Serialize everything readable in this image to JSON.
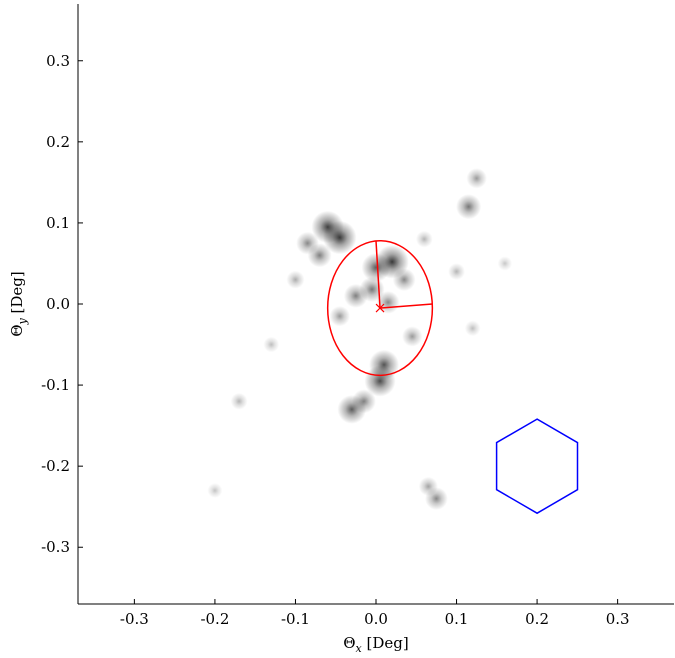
{
  "chart_data": {
    "type": "scatter",
    "title": "",
    "xlabel": "Θx [Deg]",
    "ylabel": "Θy [Deg]",
    "xlim": [
      -0.37,
      0.37
    ],
    "ylim": [
      -0.37,
      0.37
    ],
    "x_ticks": [
      -0.3,
      -0.2,
      -0.1,
      0.0,
      0.1,
      0.2,
      0.3
    ],
    "x_tick_labels": [
      "-0.3",
      "-0.2",
      "-0.1",
      "0.0",
      "0.1",
      "0.2",
      "0.3"
    ],
    "y_ticks": [
      -0.3,
      -0.2,
      -0.1,
      0.0,
      0.1,
      0.2,
      0.3
    ],
    "y_tick_labels": [
      "-0.3",
      "-0.2",
      "-0.1",
      "0.0",
      "0.1",
      "0.2",
      "0.3"
    ],
    "grid": false,
    "fit_ellipse": {
      "center": [
        0.005,
        -0.005
      ],
      "x_radius": 0.065,
      "y_radius": 0.083,
      "major_axis_end": [
        0.0,
        0.078
      ],
      "minor_axis_end": [
        0.07,
        0.0
      ],
      "color": "#ff0000"
    },
    "hexagon": {
      "center": [
        0.2,
        -0.2
      ],
      "radius": 0.058,
      "color": "#0000ff"
    },
    "density_features": [
      {
        "x": -0.06,
        "y": 0.095,
        "intensity": 0.85
      },
      {
        "x": -0.045,
        "y": 0.082,
        "intensity": 0.9
      },
      {
        "x": -0.085,
        "y": 0.075,
        "intensity": 0.45
      },
      {
        "x": -0.07,
        "y": 0.06,
        "intensity": 0.5
      },
      {
        "x": 0.02,
        "y": 0.052,
        "intensity": 0.9
      },
      {
        "x": 0.0,
        "y": 0.045,
        "intensity": 0.7
      },
      {
        "x": 0.035,
        "y": 0.03,
        "intensity": 0.45
      },
      {
        "x": -0.005,
        "y": 0.018,
        "intensity": 0.55
      },
      {
        "x": -0.025,
        "y": 0.01,
        "intensity": 0.5
      },
      {
        "x": 0.015,
        "y": 0.002,
        "intensity": 0.45
      },
      {
        "x": -0.045,
        "y": -0.015,
        "intensity": 0.35
      },
      {
        "x": 0.045,
        "y": -0.04,
        "intensity": 0.35
      },
      {
        "x": 0.01,
        "y": -0.075,
        "intensity": 0.75
      },
      {
        "x": 0.005,
        "y": -0.095,
        "intensity": 0.8
      },
      {
        "x": -0.03,
        "y": -0.13,
        "intensity": 0.7
      },
      {
        "x": -0.015,
        "y": -0.12,
        "intensity": 0.5
      },
      {
        "x": 0.115,
        "y": 0.12,
        "intensity": 0.55
      },
      {
        "x": 0.125,
        "y": 0.155,
        "intensity": 0.35
      },
      {
        "x": 0.075,
        "y": -0.24,
        "intensity": 0.45
      },
      {
        "x": 0.065,
        "y": -0.225,
        "intensity": 0.3
      },
      {
        "x": -0.17,
        "y": -0.12,
        "intensity": 0.2
      },
      {
        "x": -0.13,
        "y": -0.05,
        "intensity": 0.15
      },
      {
        "x": -0.2,
        "y": -0.23,
        "intensity": 0.12
      },
      {
        "x": 0.1,
        "y": 0.04,
        "intensity": 0.2
      },
      {
        "x": 0.12,
        "y": -0.03,
        "intensity": 0.15
      },
      {
        "x": -0.1,
        "y": 0.03,
        "intensity": 0.25
      },
      {
        "x": 0.06,
        "y": 0.08,
        "intensity": 0.2
      },
      {
        "x": 0.16,
        "y": 0.05,
        "intensity": 0.1
      }
    ]
  }
}
